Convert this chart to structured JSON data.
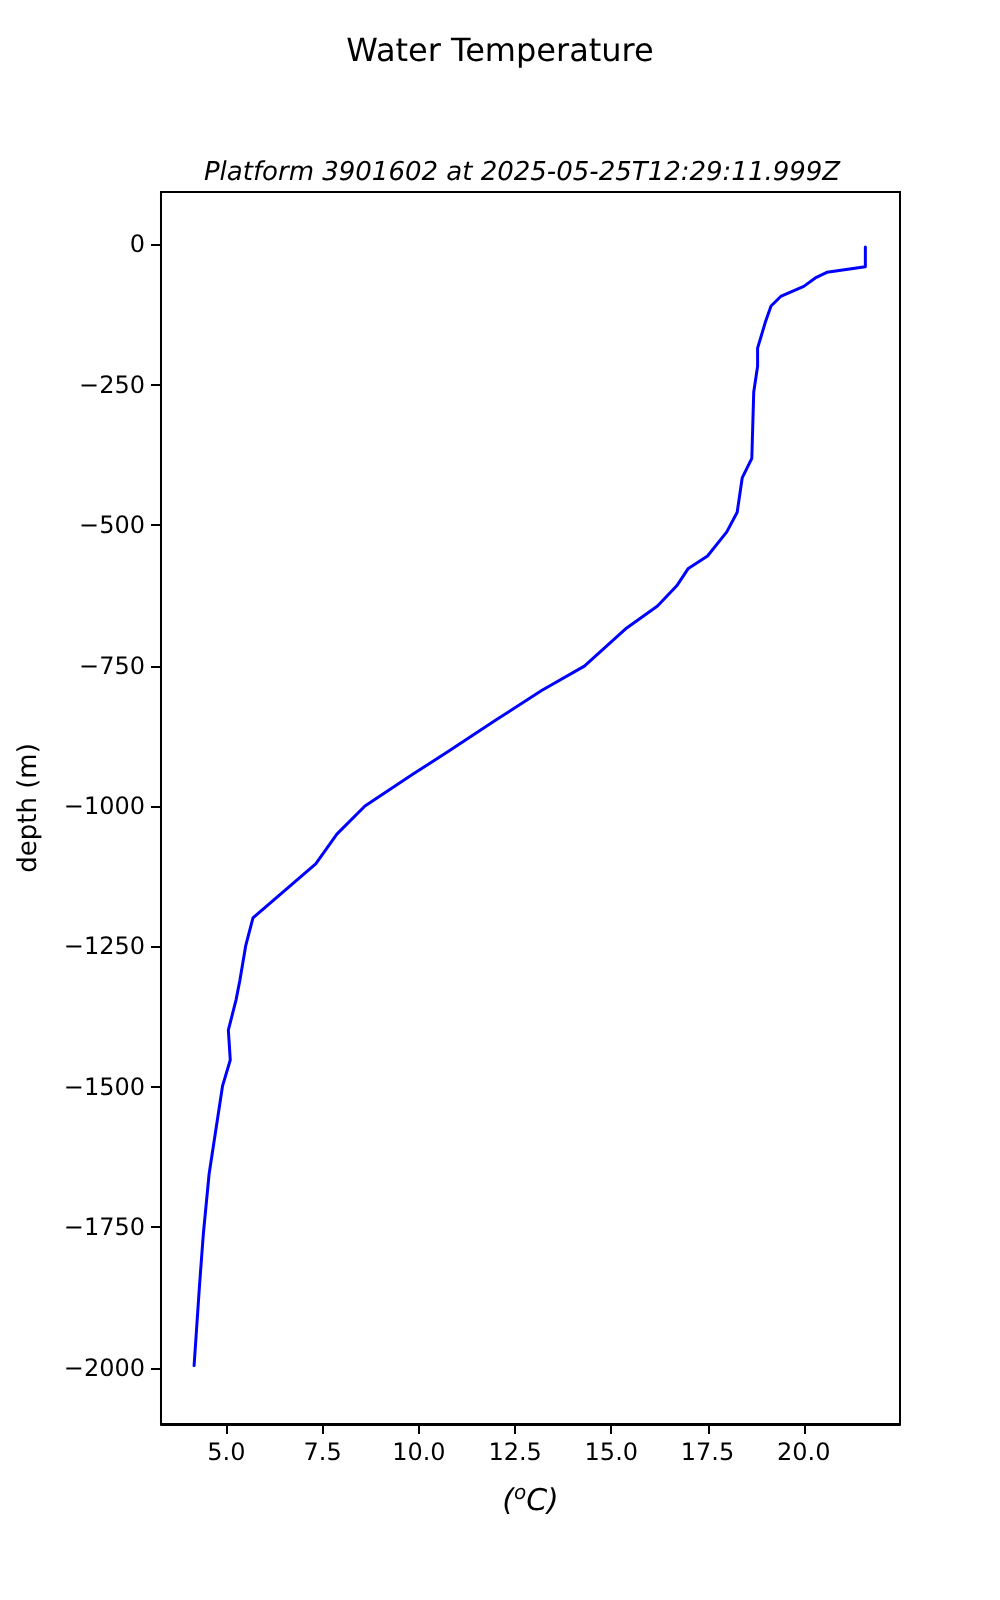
{
  "chart_data": {
    "type": "line",
    "title": "Water Temperature",
    "subtitle": "Platform 3901602 at 2025-05-25T12:29:11.999Z",
    "xlabel": "($^{o}$C)",
    "ylabel": "depth (m)",
    "series": [
      {
        "color": "#0000ff",
        "x": [
          21.6,
          21.6,
          21.6,
          20.6,
          20.3,
          20.0,
          19.4,
          19.15,
          19.0,
          18.8,
          18.8,
          18.7,
          18.65,
          18.4,
          18.27,
          18.0,
          17.5,
          17.0,
          16.7,
          16.2,
          15.4,
          14.3,
          13.2,
          12.0,
          10.74,
          9.85,
          8.6,
          7.87,
          7.32,
          5.69,
          5.5,
          5.35,
          5.25,
          5.05,
          5.1,
          4.9,
          4.55,
          4.4,
          4.3,
          4.16
        ],
        "values": [
          -5,
          -20,
          -40,
          -50,
          -60,
          -75,
          -93,
          -110,
          -139,
          -185,
          -217,
          -263,
          -381,
          -416,
          -477,
          -512,
          -555,
          -577,
          -608,
          -644,
          -683,
          -751,
          -794,
          -847,
          -904,
          -943,
          -1000,
          -1050,
          -1103,
          -1199,
          -1249,
          -1310,
          -1345,
          -1399,
          -1452,
          -1498,
          -1655,
          -1762,
          -1854,
          -1996
        ]
      }
    ],
    "xlim": [
      3.3,
      22.5
    ],
    "xticks": [
      {
        "value": 5,
        "label": "5.0"
      },
      {
        "value": 7.5,
        "label": "7.5"
      },
      {
        "value": 10,
        "label": "10.0"
      },
      {
        "value": 12.5,
        "label": "12.5"
      },
      {
        "value": 15,
        "label": "15.0"
      },
      {
        "value": 17.5,
        "label": "17.5"
      },
      {
        "value": 20,
        "label": "20.0"
      }
    ],
    "ylim": [
      -2100,
      93
    ],
    "yticks": [
      0,
      -250,
      -500,
      -750,
      -1000,
      -1250,
      -1500,
      -1750,
      -2000
    ],
    "grid": false,
    "marker": "none",
    "line_style": "solid"
  }
}
